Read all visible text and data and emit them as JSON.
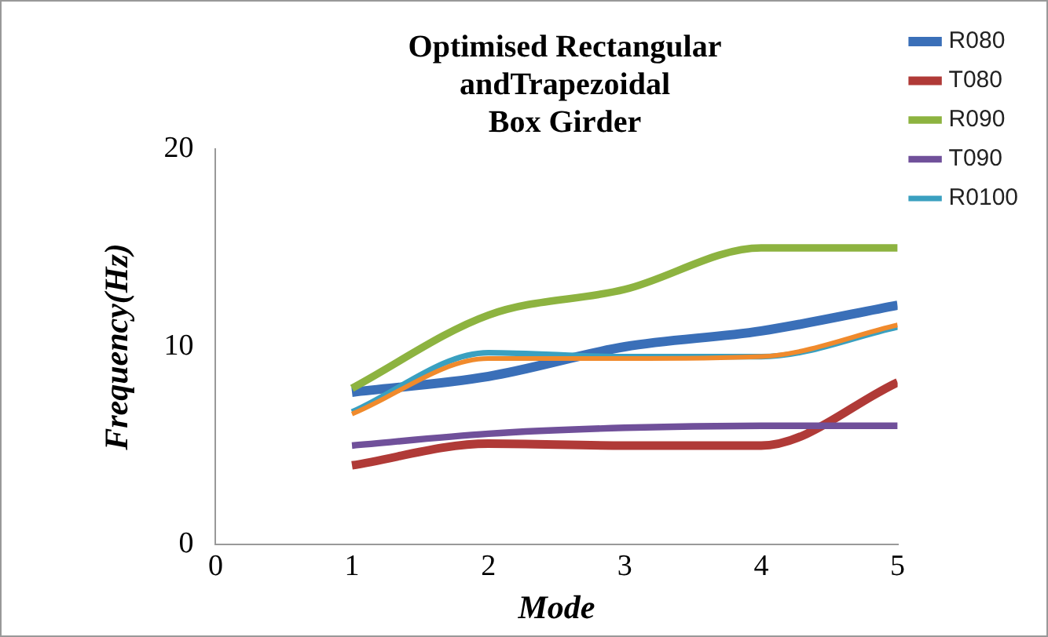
{
  "chart_data": {
    "type": "line",
    "title": [
      "Optimised Rectangular",
      "andTrapezoidal",
      "Box Girder"
    ],
    "xlabel": "Mode",
    "ylabel": "Frequency(Hz)",
    "x": [
      1,
      2,
      3,
      4,
      5
    ],
    "xlim": [
      0,
      5
    ],
    "xticks": [
      0,
      1,
      2,
      3,
      4,
      5
    ],
    "ylim": [
      0,
      20
    ],
    "yticks": [
      0,
      10,
      20
    ],
    "grid": false,
    "legend": "top right",
    "series": [
      {
        "name": "R080",
        "color": "#3a6fb8",
        "values": [
          7.7,
          8.5,
          10.0,
          10.8,
          12.1
        ]
      },
      {
        "name": "T080",
        "color": "#b03a37",
        "values": [
          4.0,
          5.1,
          5.0,
          5.0,
          8.2
        ]
      },
      {
        "name": "R090",
        "color": "#8db340",
        "values": [
          7.9,
          11.6,
          12.9,
          15.0,
          15.0
        ]
      },
      {
        "name": "T090",
        "color": "#70509a",
        "values": [
          5.0,
          5.6,
          5.9,
          6.0,
          6.0
        ]
      },
      {
        "name": "R0100",
        "color": "#3aa0c0",
        "values": [
          6.7,
          9.7,
          9.5,
          9.5,
          11.0
        ]
      },
      {
        "color": "#f08a2c",
        "values": [
          6.6,
          9.4,
          9.4,
          9.5,
          11.1
        ]
      }
    ]
  }
}
